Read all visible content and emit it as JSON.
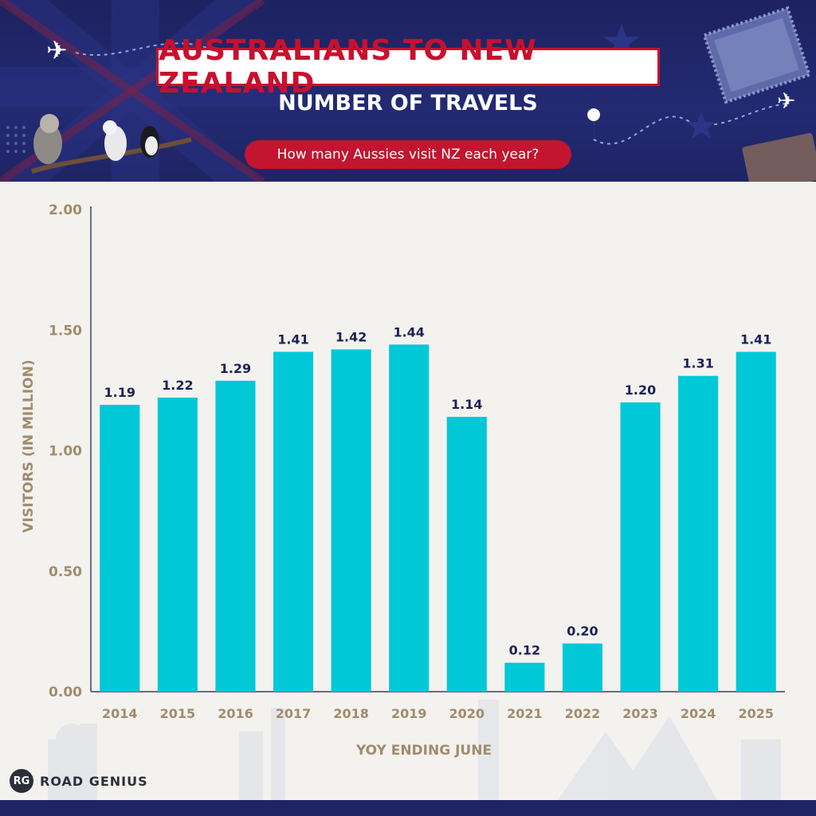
{
  "header": {
    "title": "AUSTRALIANS TO NEW ZEALAND",
    "subtitle": "NUMBER OF TRAVELS",
    "question": "How many Aussies visit NZ each year?"
  },
  "brand": {
    "badge": "RG",
    "name": "ROAD GENIUS"
  },
  "colors": {
    "bar": "#00c8d7",
    "header_bg": "#232a72",
    "title_red": "#c8102e",
    "axis_text": "#a08c6c",
    "value_text": "#1c2156"
  },
  "chart_data": {
    "type": "bar",
    "title": "NUMBER OF TRAVELS",
    "xlabel": "YOY ENDING JUNE",
    "ylabel": "VISITORS (IN MILLION)",
    "categories": [
      "2014",
      "2015",
      "2016",
      "2017",
      "2018",
      "2019",
      "2020",
      "2021",
      "2022",
      "2023",
      "2024",
      "2025"
    ],
    "values": [
      1.19,
      1.22,
      1.29,
      1.41,
      1.42,
      1.44,
      1.14,
      0.12,
      0.2,
      1.2,
      1.31,
      1.41
    ],
    "value_labels": [
      "1.19",
      "1.22",
      "1.29",
      "1.41",
      "1.42",
      "1.44",
      "1.14",
      "0.12",
      "0.20",
      "1.20",
      "1.31",
      "1.41"
    ],
    "yticks": [
      "0.00",
      "0.50",
      "1.00",
      "1.50",
      "2.00"
    ],
    "ylim": [
      0,
      2
    ],
    "grid": false,
    "legend": "none"
  }
}
